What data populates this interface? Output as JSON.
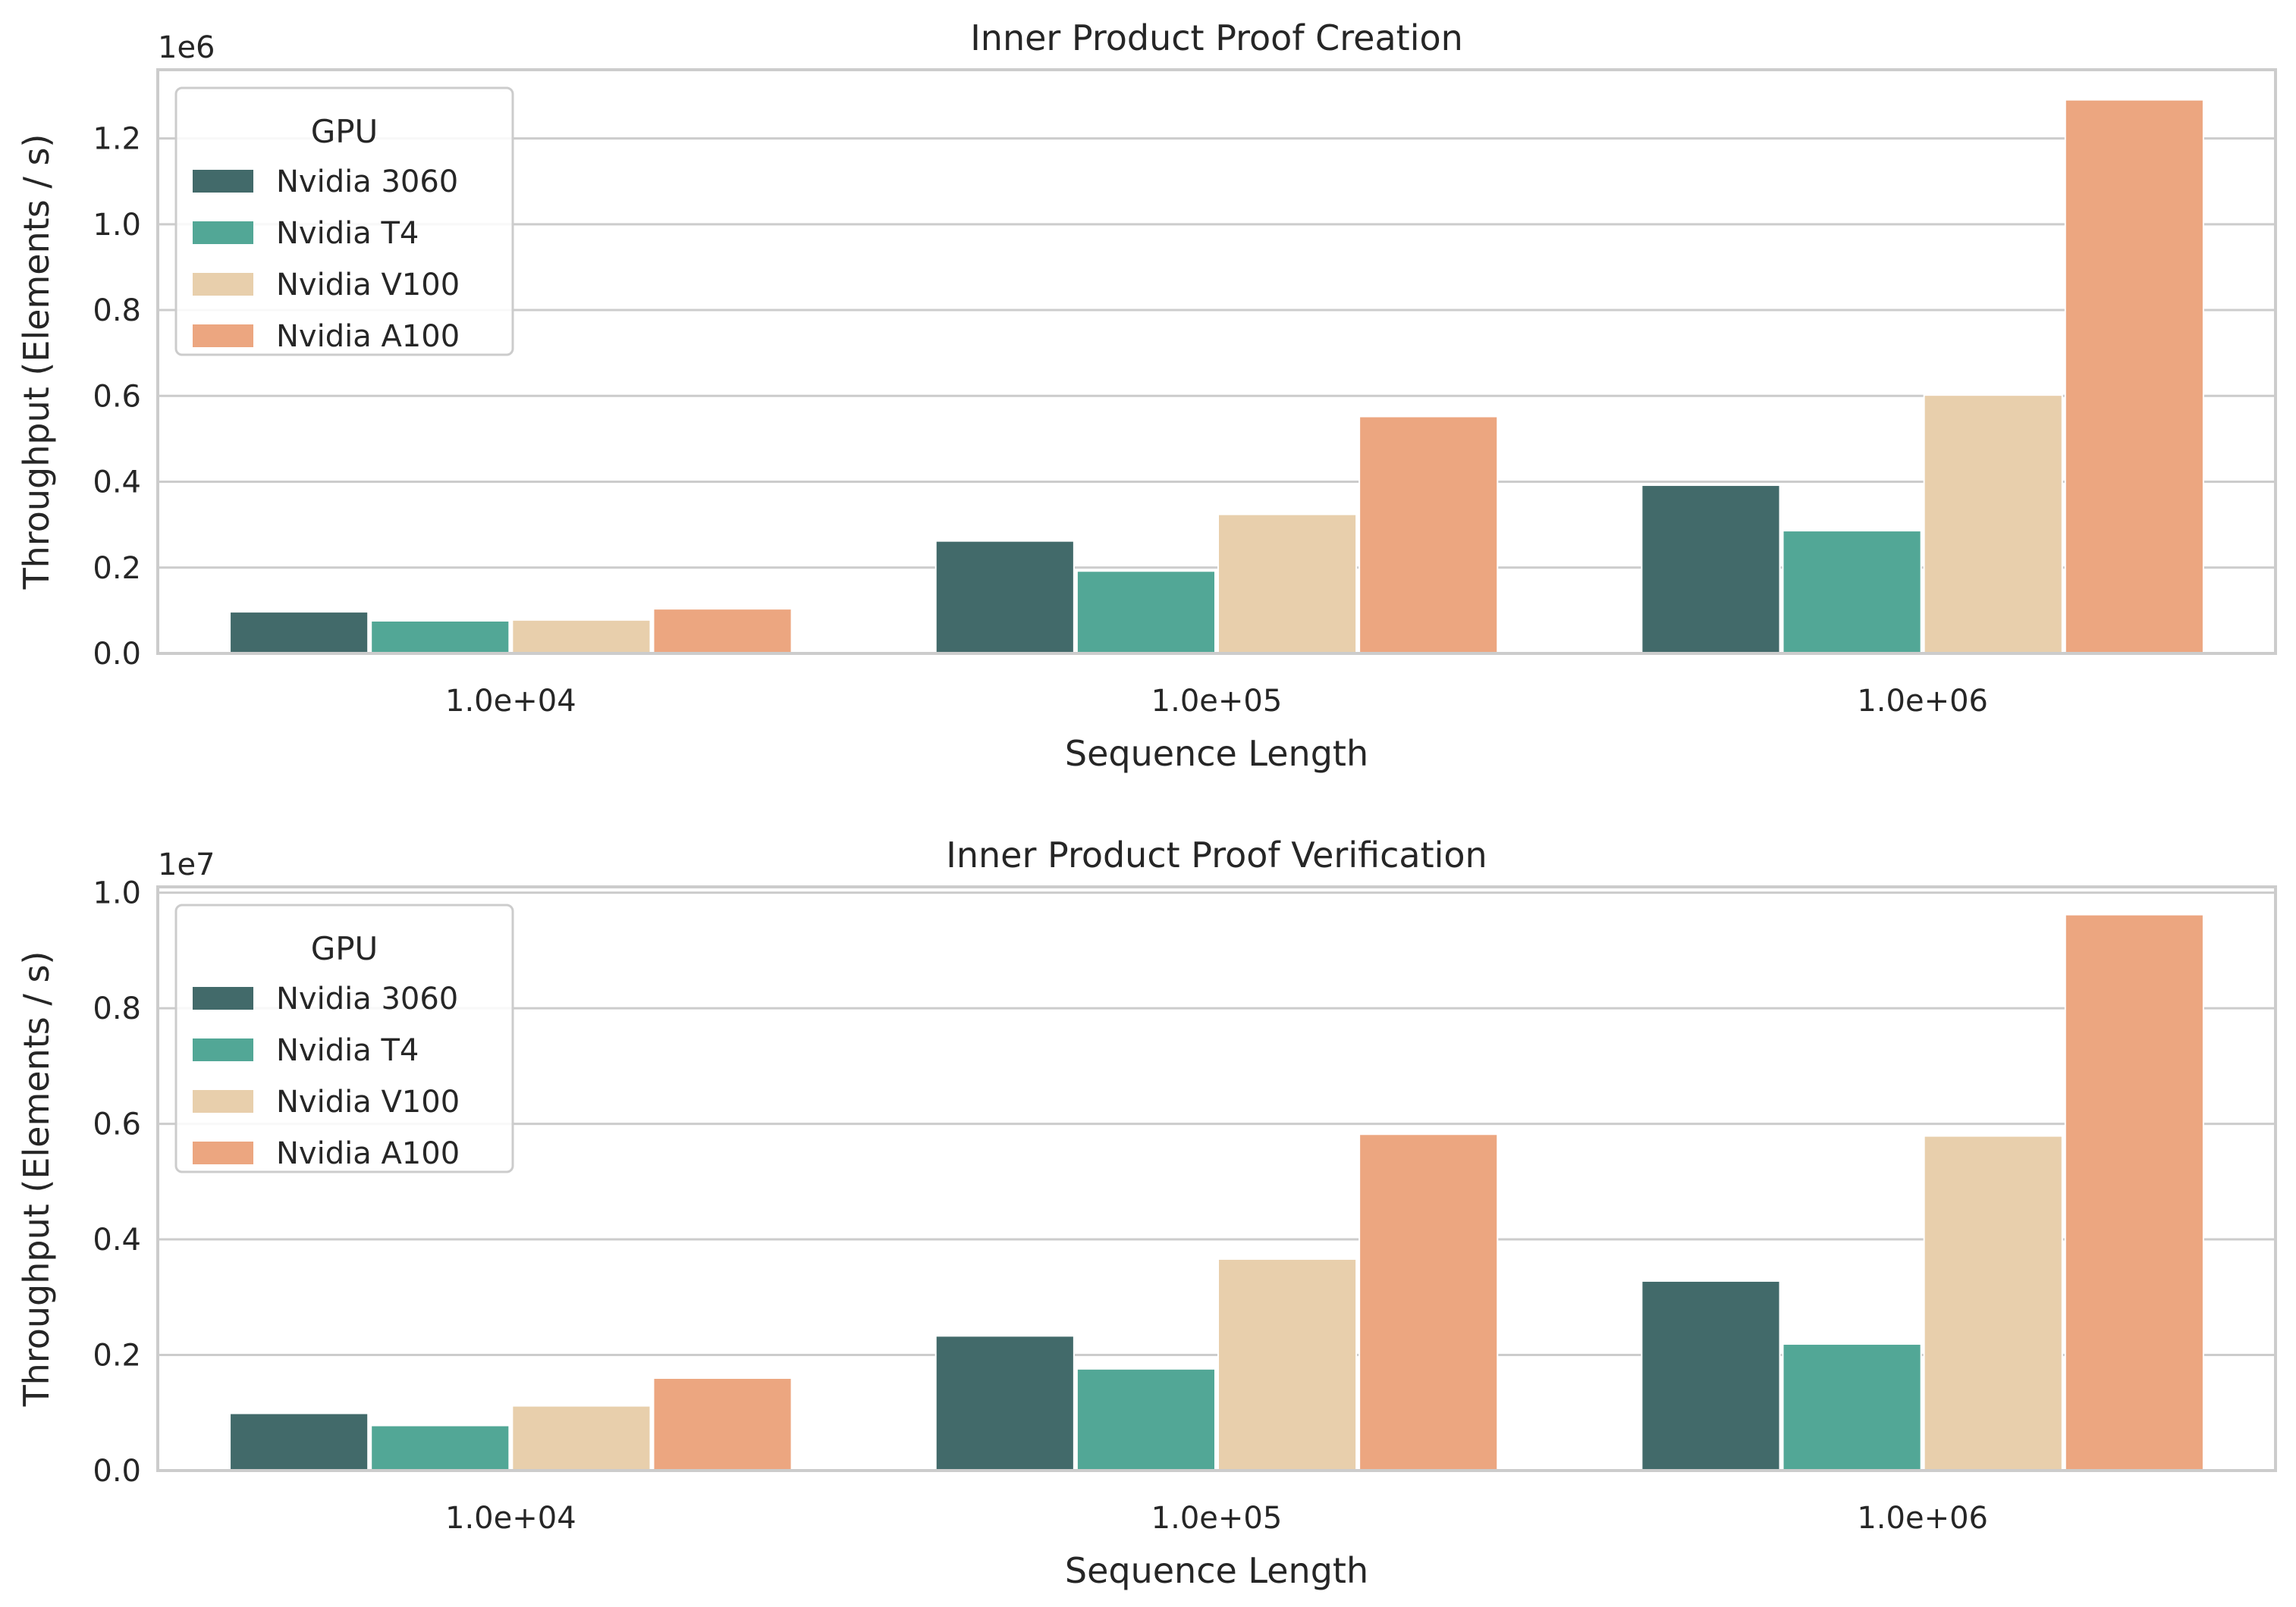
{
  "chart_data": [
    {
      "type": "bar",
      "title": "Inner Product Proof Creation",
      "xlabel": "Sequence Length",
      "ylabel": "Throughput (Elements / s)",
      "y_scale_label": "1e6",
      "y_scale": 1000000,
      "categories": [
        "1.0e+04",
        "1.0e+05",
        "1.0e+06"
      ],
      "ylim": [
        0,
        1360000
      ],
      "yticks": [
        0,
        200000,
        400000,
        600000,
        800000,
        1000000,
        1200000
      ],
      "ytick_labels": [
        "0.0",
        "0.2",
        "0.4",
        "0.6",
        "0.8",
        "1.0",
        "1.2"
      ],
      "grid": true,
      "legend": {
        "title": "GPU",
        "placement": "top-left"
      },
      "series": [
        {
          "name": "Nvidia 3060",
          "color": "#426a6a",
          "values": [
            97000,
            262000,
            392000
          ]
        },
        {
          "name": "Nvidia T4",
          "color": "#52a796",
          "values": [
            76000,
            192000,
            286000
          ]
        },
        {
          "name": "Nvidia V100",
          "color": "#e8cfac",
          "values": [
            78000,
            324000,
            602000
          ]
        },
        {
          "name": "Nvidia A100",
          "color": "#eca680",
          "values": [
            104000,
            552000,
            1290000
          ]
        }
      ]
    },
    {
      "type": "bar",
      "title": "Inner Product Proof Verification",
      "xlabel": "Sequence Length",
      "ylabel": "Throughput (Elements / s)",
      "y_scale_label": "1e7",
      "y_scale": 10000000,
      "categories": [
        "1.0e+04",
        "1.0e+05",
        "1.0e+06"
      ],
      "ylim": [
        0,
        10100000
      ],
      "yticks": [
        0,
        2000000,
        4000000,
        6000000,
        8000000,
        10000000
      ],
      "ytick_labels": [
        "0.0",
        "0.2",
        "0.4",
        "0.6",
        "0.8",
        "1.0"
      ],
      "grid": true,
      "legend": {
        "title": "GPU",
        "placement": "top-left"
      },
      "series": [
        {
          "name": "Nvidia 3060",
          "color": "#426a6a",
          "values": [
            990000,
            2330000,
            3280000
          ]
        },
        {
          "name": "Nvidia T4",
          "color": "#52a796",
          "values": [
            780000,
            1760000,
            2190000
          ]
        },
        {
          "name": "Nvidia V100",
          "color": "#e8cfac",
          "values": [
            1120000,
            3660000,
            5790000
          ]
        },
        {
          "name": "Nvidia A100",
          "color": "#eca680",
          "values": [
            1600000,
            5820000,
            9620000
          ]
        }
      ]
    }
  ]
}
